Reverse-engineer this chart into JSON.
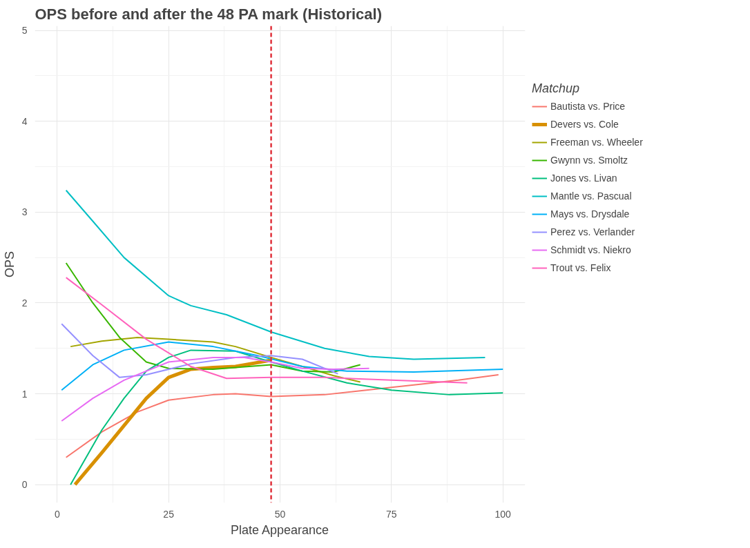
{
  "chart_data": {
    "type": "line",
    "title": "OPS before and after the 48 PA mark (Historical)",
    "xlabel": "Plate Appearance",
    "ylabel": "OPS",
    "legend_title": "Matchup",
    "legend": "right",
    "grid": true,
    "line_style": "solid",
    "xlim": [
      -5,
      105
    ],
    "ylim": [
      -0.2,
      5.05
    ],
    "xticks": [
      0,
      25,
      50,
      75,
      100
    ],
    "yticks": [
      0,
      1,
      2,
      3,
      4,
      5
    ],
    "ref_lines": [
      {
        "axis": "x",
        "value": 48,
        "color": "#e0303a",
        "line_style": "dashed"
      }
    ],
    "series": [
      {
        "name": "Bautista vs. Price",
        "color": "#f8766d",
        "x": [
          2,
          10,
          18,
          25,
          35,
          40,
          48,
          60,
          75,
          90,
          99
        ],
        "values": [
          0.3,
          0.58,
          0.8,
          0.93,
          0.99,
          1.0,
          0.97,
          0.99,
          1.07,
          1.15,
          1.21
        ]
      },
      {
        "name": "Devers vs. Cole",
        "color": "#d89000",
        "x": [
          4,
          10,
          15,
          20,
          25,
          30,
          35,
          40,
          48
        ],
        "values": [
          0.0,
          0.35,
          0.65,
          0.95,
          1.18,
          1.27,
          1.29,
          1.3,
          1.37
        ]
      },
      {
        "name": "Freeman vs. Wheeler",
        "color": "#a3a500",
        "x": [
          3,
          10,
          18,
          25,
          35,
          40,
          48,
          55,
          62,
          68
        ],
        "values": [
          1.52,
          1.58,
          1.62,
          1.6,
          1.57,
          1.52,
          1.4,
          1.3,
          1.2,
          1.13
        ]
      },
      {
        "name": "Gwynn vs. Smoltz",
        "color": "#39b600",
        "x": [
          2,
          8,
          14,
          20,
          25,
          35,
          48,
          55,
          62,
          68
        ],
        "values": [
          2.44,
          2.0,
          1.62,
          1.35,
          1.28,
          1.27,
          1.32,
          1.25,
          1.24,
          1.32
        ]
      },
      {
        "name": "Jones vs. Livan",
        "color": "#00bf7d",
        "x": [
          3,
          10,
          15,
          20,
          25,
          30,
          40,
          48,
          55,
          65,
          75,
          88,
          100
        ],
        "values": [
          0.0,
          0.6,
          0.95,
          1.25,
          1.4,
          1.48,
          1.47,
          1.35,
          1.25,
          1.12,
          1.04,
          0.99,
          1.01
        ]
      },
      {
        "name": "Mantle vs. Pascual",
        "color": "#00bfc4",
        "x": [
          2,
          8,
          15,
          25,
          30,
          38,
          48,
          60,
          70,
          80,
          96
        ],
        "values": [
          3.24,
          2.9,
          2.5,
          2.08,
          1.97,
          1.87,
          1.68,
          1.5,
          1.41,
          1.38,
          1.4
        ]
      },
      {
        "name": "Mays vs. Drysdale",
        "color": "#00b0f6",
        "x": [
          1,
          8,
          15,
          25,
          35,
          45,
          55,
          65,
          80,
          100
        ],
        "values": [
          1.04,
          1.32,
          1.48,
          1.57,
          1.52,
          1.42,
          1.3,
          1.25,
          1.24,
          1.27
        ]
      },
      {
        "name": "Perez vs. Verlander",
        "color": "#9590ff",
        "x": [
          1,
          8,
          14,
          20,
          30,
          40,
          48,
          55,
          63
        ],
        "values": [
          1.77,
          1.42,
          1.18,
          1.21,
          1.33,
          1.4,
          1.42,
          1.38,
          1.22
        ]
      },
      {
        "name": "Schmidt vs. Niekro",
        "color": "#e76bf3",
        "x": [
          1,
          8,
          15,
          25,
          35,
          42,
          48,
          55,
          62,
          70
        ],
        "values": [
          0.7,
          0.95,
          1.15,
          1.35,
          1.4,
          1.4,
          1.35,
          1.28,
          1.27,
          1.28
        ]
      },
      {
        "name": "Trout vs. Felix",
        "color": "#ff62bc",
        "x": [
          2,
          10,
          20,
          30,
          38,
          48,
          60,
          75,
          92
        ],
        "values": [
          2.28,
          1.98,
          1.6,
          1.3,
          1.17,
          1.18,
          1.18,
          1.15,
          1.12
        ]
      }
    ]
  }
}
